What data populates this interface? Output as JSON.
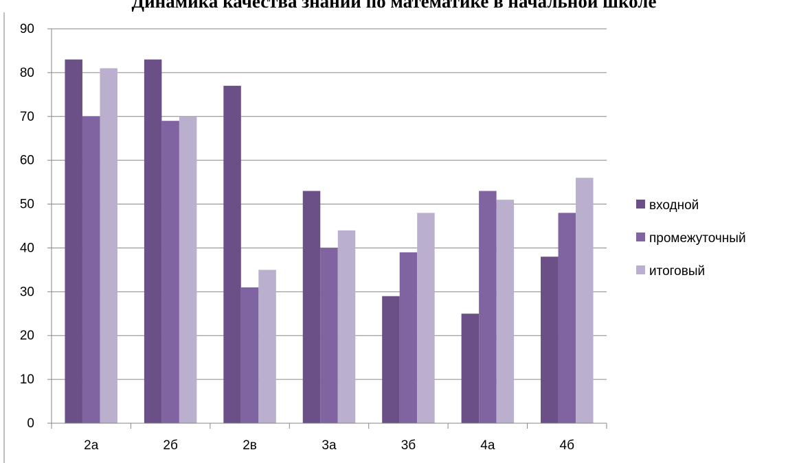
{
  "chart_data": {
    "type": "bar",
    "title": "Динамика качества знаний по математике в начальной школе",
    "categories": [
      "2а",
      "2б",
      "2в",
      "3а",
      "3б",
      "4а",
      "4б"
    ],
    "series": [
      {
        "name": "входной",
        "values": [
          83,
          83,
          77,
          53,
          29,
          25,
          38
        ]
      },
      {
        "name": "промежуточный",
        "values": [
          70,
          69,
          31,
          40,
          39,
          53,
          48
        ]
      },
      {
        "name": "итоговый",
        "values": [
          81,
          70,
          35,
          44,
          48,
          51,
          56
        ]
      }
    ],
    "ylim": [
      0,
      90
    ],
    "yticks": [
      0,
      10,
      20,
      30,
      40,
      50,
      60,
      70,
      80,
      90
    ],
    "grid": true,
    "legend_position": "right",
    "colors": [
      "#6B5088",
      "#8064A2",
      "#BBAFCE"
    ]
  }
}
